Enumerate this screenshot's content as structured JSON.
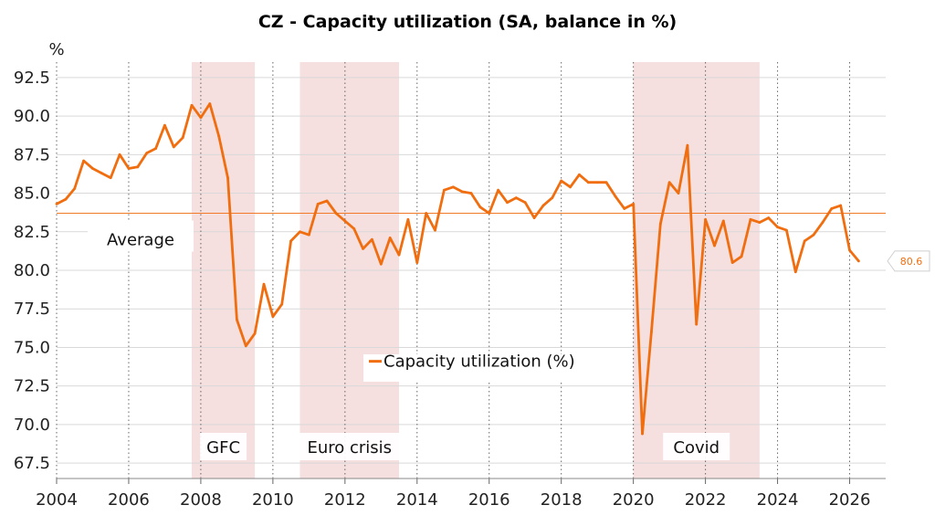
{
  "chart_data": {
    "type": "line",
    "title": "CZ - Capacity utilization (SA, balance in %)",
    "ylabel": "%",
    "xlabel": "",
    "xlim": [
      2004,
      2027
    ],
    "ylim": [
      66.5,
      93.5
    ],
    "x_ticks": [
      "2004",
      "2006",
      "2008",
      "2010",
      "2012",
      "2014",
      "2016",
      "2018",
      "2020",
      "2022",
      "2024",
      "2026"
    ],
    "y_ticks": [
      "67.5",
      "70.0",
      "72.5",
      "75.0",
      "77.5",
      "80.0",
      "82.5",
      "85.0",
      "87.5",
      "90.0",
      "92.5"
    ],
    "colors": {
      "line": "#f06e0f",
      "shade": "#f5dfdf",
      "average": "#f07a28",
      "grid": "#d9d9d9"
    },
    "average": {
      "label": "Average",
      "value": 83.7
    },
    "end_label": {
      "text": "80.6",
      "value": 80.6
    },
    "shaded_periods": [
      {
        "label": "GFC",
        "start": 2007.75,
        "end": 2009.5
      },
      {
        "label": "Euro crisis",
        "start": 2010.75,
        "end": 2013.5
      },
      {
        "label": "Covid",
        "start": 2020.0,
        "end": 2023.5
      }
    ],
    "legend": {
      "position": "center",
      "entries": [
        "Capacity utilization (%)"
      ]
    },
    "series": [
      {
        "name": "Capacity utilization (%)",
        "x": [
          2004.0,
          2004.25,
          2004.5,
          2004.75,
          2005.0,
          2005.25,
          2005.5,
          2005.75,
          2006.0,
          2006.25,
          2006.5,
          2006.75,
          2007.0,
          2007.25,
          2007.5,
          2007.75,
          2008.0,
          2008.25,
          2008.5,
          2008.75,
          2009.0,
          2009.25,
          2009.5,
          2009.75,
          2010.0,
          2010.25,
          2010.5,
          2010.75,
          2011.0,
          2011.25,
          2011.5,
          2011.75,
          2012.0,
          2012.25,
          2012.5,
          2012.75,
          2013.0,
          2013.25,
          2013.5,
          2013.75,
          2014.0,
          2014.25,
          2014.5,
          2014.75,
          2015.0,
          2015.25,
          2015.5,
          2015.75,
          2016.0,
          2016.25,
          2016.5,
          2016.75,
          2017.0,
          2017.25,
          2017.5,
          2017.75,
          2018.0,
          2018.25,
          2018.5,
          2018.75,
          2019.0,
          2019.25,
          2019.5,
          2019.75,
          2020.0,
          2020.25,
          2020.5,
          2020.75,
          2021.0,
          2021.25,
          2021.5,
          2021.75,
          2022.0,
          2022.25,
          2022.5,
          2022.75,
          2023.0,
          2023.25,
          2023.5,
          2023.75,
          2024.0,
          2024.25,
          2024.5,
          2024.75,
          2025.0,
          2025.25,
          2025.5,
          2025.75,
          2026.0,
          2026.25
        ],
        "values": [
          84.3,
          84.6,
          85.3,
          87.1,
          86.6,
          86.3,
          86.0,
          87.5,
          86.6,
          86.7,
          87.6,
          87.9,
          89.4,
          88.0,
          88.6,
          90.7,
          89.9,
          90.8,
          88.7,
          86.0,
          76.8,
          75.1,
          75.9,
          79.1,
          77.0,
          77.8,
          81.9,
          82.5,
          82.3,
          84.3,
          84.5,
          83.7,
          83.2,
          82.7,
          81.4,
          82.0,
          80.4,
          82.1,
          81.0,
          83.3,
          80.5,
          83.7,
          82.6,
          85.2,
          85.4,
          85.1,
          85.0,
          84.1,
          83.7,
          85.2,
          84.4,
          84.7,
          84.4,
          83.4,
          84.2,
          84.7,
          85.8,
          85.4,
          86.2,
          85.7,
          85.7,
          85.7,
          84.8,
          84.0,
          84.3,
          69.4,
          76.0,
          83.0,
          85.7,
          85.0,
          88.1,
          76.5,
          83.3,
          81.6,
          83.2,
          80.5,
          80.9,
          83.3,
          83.1,
          83.4,
          82.8,
          82.6,
          79.9,
          81.9,
          82.3,
          83.1,
          84.0,
          84.2,
          81.3,
          80.6
        ]
      }
    ]
  }
}
